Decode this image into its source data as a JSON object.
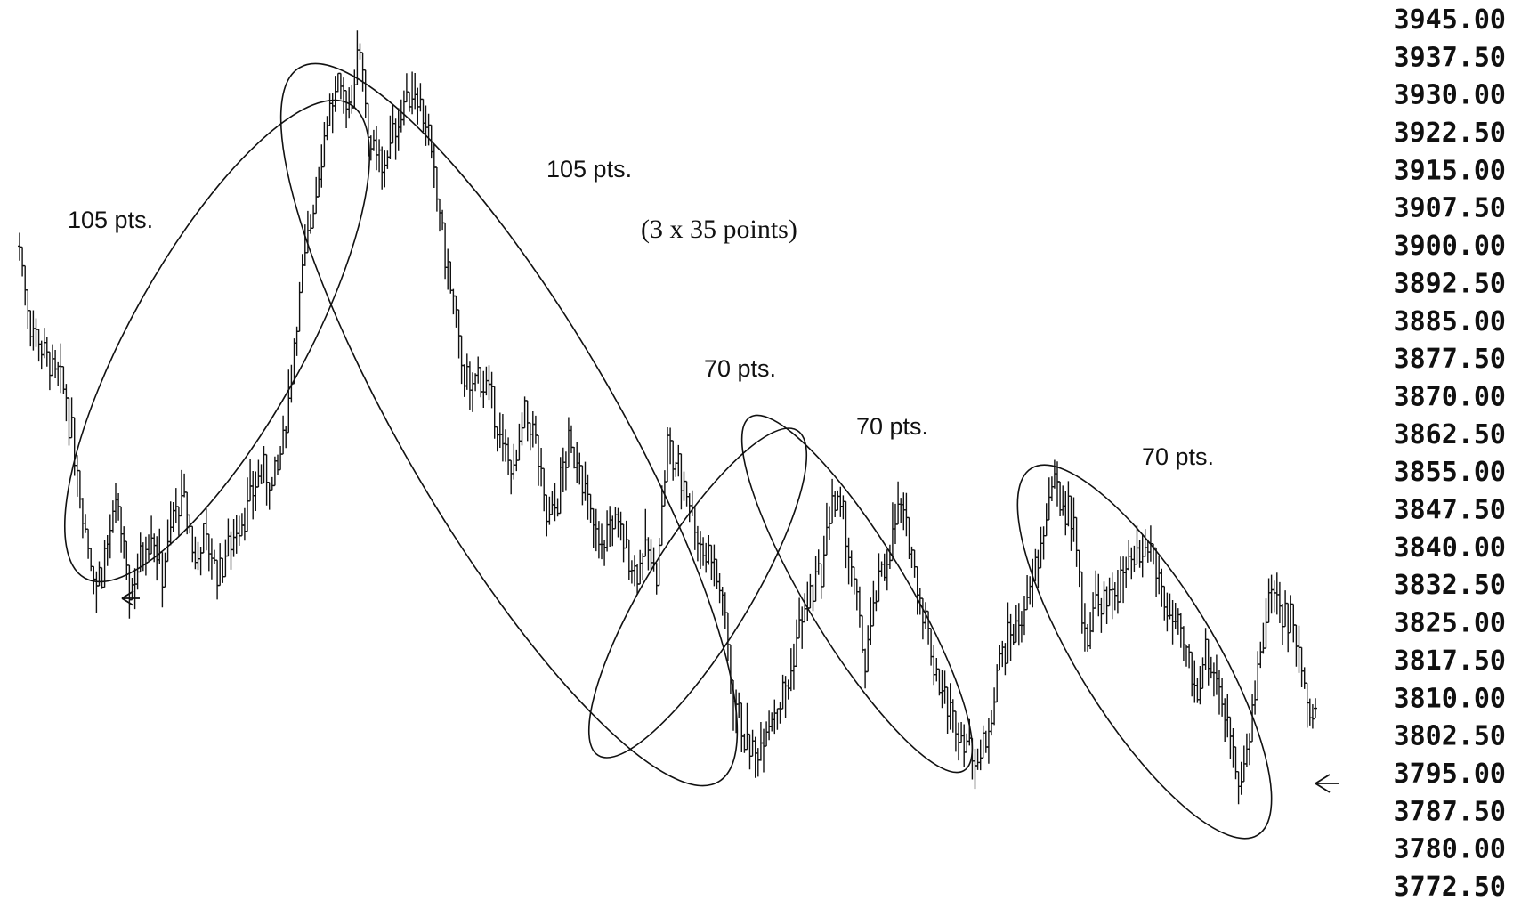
{
  "chart_data": {
    "type": "line",
    "style": "ohlc-bars",
    "title": "",
    "xlabel": "",
    "ylabel": "",
    "ylim": [
      3770.0,
      3947.0
    ],
    "y_axis_position": "right",
    "y_ticks": [
      "3945.00",
      "3937.50",
      "3930.00",
      "3922.50",
      "3915.00",
      "3907.50",
      "3900.00",
      "3892.50",
      "3885.00",
      "3877.50",
      "3870.00",
      "3862.50",
      "3855.00",
      "3847.50",
      "3840.00",
      "3832.50",
      "3825.00",
      "3817.50",
      "3810.00",
      "3802.50",
      "3795.00",
      "3787.50",
      "3780.00",
      "3772.50"
    ],
    "grid": false,
    "legend": "none",
    "series": [
      {
        "values": [
          3900,
          3885,
          3880,
          3875,
          3872,
          3860,
          3845,
          3832,
          3840,
          3848,
          3830,
          3838,
          3844,
          3835,
          3846,
          3850,
          3838,
          3842,
          3835,
          3840,
          3845,
          3850,
          3855,
          3852,
          3860,
          3880,
          3898,
          3912,
          3925,
          3930,
          3928,
          3940,
          3920,
          3915,
          3922,
          3928,
          3932,
          3925,
          3910,
          3895,
          3880,
          3870,
          3875,
          3868,
          3860,
          3855,
          3865,
          3862,
          3845,
          3850,
          3860,
          3858,
          3845,
          3840,
          3845,
          3842,
          3835,
          3840,
          3835,
          3860,
          3855,
          3850,
          3840,
          3838,
          3830,
          3810,
          3803,
          3798,
          3805,
          3808,
          3812,
          3825,
          3830,
          3835,
          3850,
          3845,
          3832,
          3818,
          3830,
          3838,
          3848,
          3842,
          3830,
          3820,
          3812,
          3805,
          3803,
          3798,
          3800,
          3815,
          3822,
          3825,
          3830,
          3840,
          3852,
          3850,
          3845,
          3822,
          3830,
          3828,
          3833,
          3835,
          3838,
          3840,
          3832,
          3825,
          3820,
          3812,
          3818,
          3815,
          3805,
          3795,
          3800,
          3820,
          3832,
          3828,
          3824,
          3812,
          3808
        ],
        "marker_color": "#111111"
      }
    ],
    "annotations": [
      {
        "text": "105 pts.",
        "style": "sans"
      },
      {
        "text": "105 pts.",
        "style": "sans"
      },
      {
        "text": "(3 x 35 points)",
        "style": "serif"
      },
      {
        "text": "70 pts.",
        "style": "sans"
      },
      {
        "text": "70 pts.",
        "style": "sans"
      },
      {
        "text": "70 pts.",
        "style": "sans"
      }
    ]
  }
}
